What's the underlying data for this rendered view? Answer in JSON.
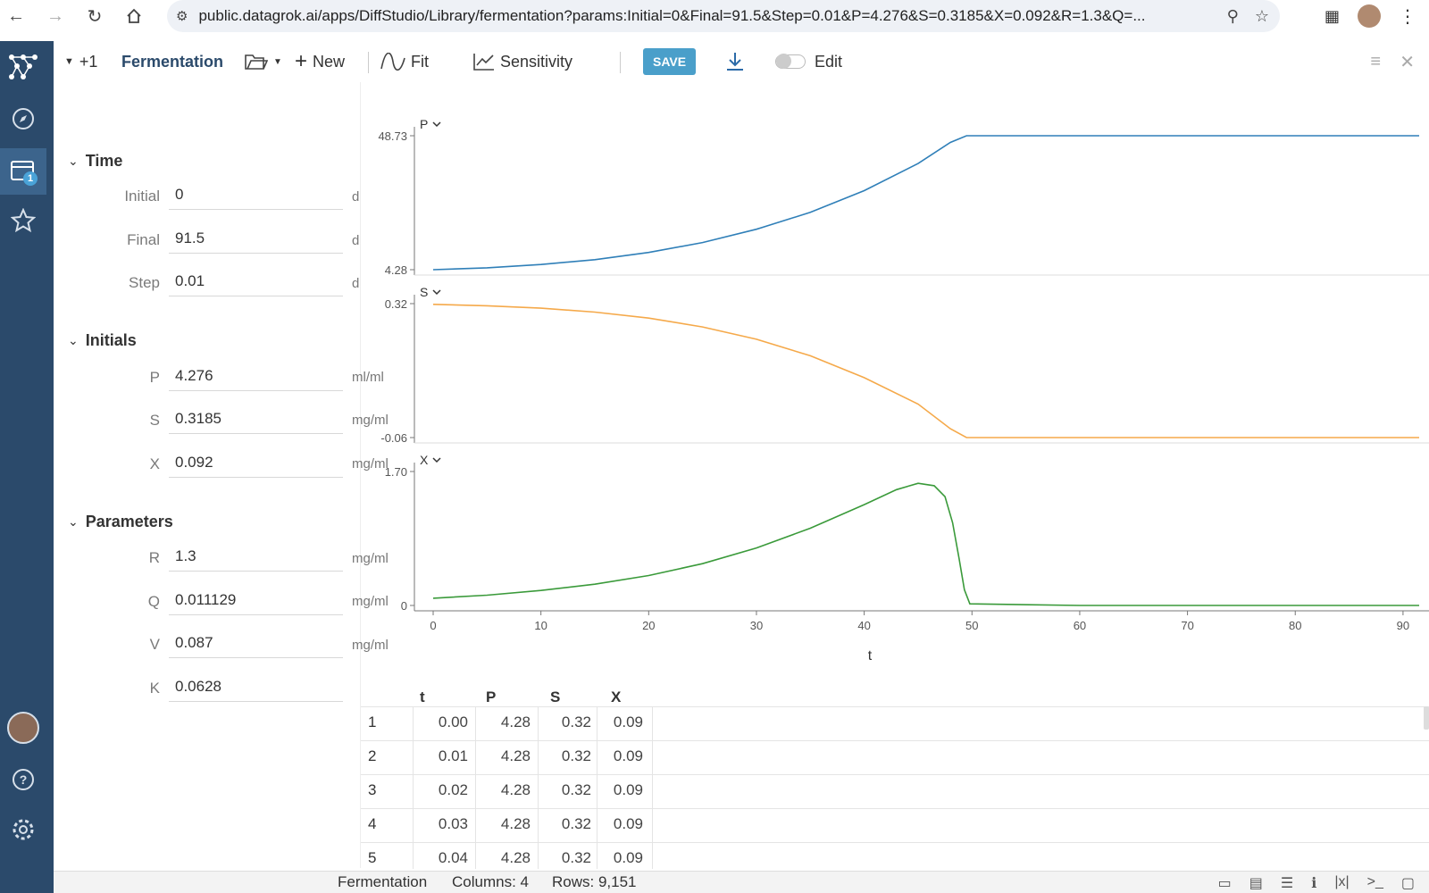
{
  "browser": {
    "url": "public.datagrok.ai/apps/DiffStudio/Library/fermentation?params:Initial=0&Final=91.5&Step=0.01&P=4.276&S=0.3185&X=0.092&R=1.3&Q=..."
  },
  "sidebar": {
    "badge": "1"
  },
  "toolbar": {
    "plus_count": "+1",
    "title": "Fermentation",
    "new_label": "New",
    "fit_label": "Fit",
    "sensitivity_label": "Sensitivity",
    "save_label": "SAVE",
    "edit_label": "Edit"
  },
  "panel": {
    "time": {
      "title": "Time",
      "fields": [
        {
          "label": "Initial",
          "value": "0",
          "unit": "d"
        },
        {
          "label": "Final",
          "value": "91.5",
          "unit": "d"
        },
        {
          "label": "Step",
          "value": "0.01",
          "unit": "d"
        }
      ]
    },
    "initials": {
      "title": "Initials",
      "fields": [
        {
          "label": "P",
          "value": "4.276",
          "unit": "ml/ml"
        },
        {
          "label": "S",
          "value": "0.3185",
          "unit": "mg/ml"
        },
        {
          "label": "X",
          "value": "0.092",
          "unit": "mg/ml"
        }
      ]
    },
    "parameters": {
      "title": "Parameters",
      "fields": [
        {
          "label": "R",
          "value": "1.3",
          "unit": "mg/ml"
        },
        {
          "label": "Q",
          "value": "0.011129",
          "unit": "mg/ml"
        },
        {
          "label": "V",
          "value": "0.087",
          "unit": "mg/ml"
        },
        {
          "label": "K",
          "value": "0.0628",
          "unit": ""
        }
      ]
    }
  },
  "chart_data": {
    "type": "line",
    "xlabel": "t",
    "xlim": [
      0,
      91.5
    ],
    "xticks": [
      "0",
      "10",
      "20",
      "30",
      "40",
      "50",
      "60",
      "70",
      "80",
      "90"
    ],
    "colors": {
      "P": "#2f7fb8",
      "S": "#f5a94a",
      "X": "#3a9a3a"
    },
    "series": [
      {
        "name": "P",
        "ymin_label": "4.28",
        "ymax_label": "48.73",
        "ylim": [
          4.28,
          48.73
        ],
        "x": [
          0,
          5,
          10,
          15,
          20,
          25,
          30,
          35,
          40,
          45,
          48,
          49.5,
          60,
          70,
          80,
          91.5
        ],
        "values": [
          4.28,
          4.9,
          6.0,
          7.6,
          10.0,
          13.3,
          17.7,
          23.3,
          30.5,
          39.5,
          46.5,
          48.73,
          48.73,
          48.73,
          48.73,
          48.73
        ]
      },
      {
        "name": "S",
        "ymin_label": "-0.06",
        "ymax_label": "0.32",
        "ylim": [
          -0.06,
          0.32
        ],
        "x": [
          0,
          5,
          10,
          15,
          20,
          25,
          30,
          35,
          40,
          45,
          48,
          49.5,
          60,
          70,
          80,
          91.5
        ],
        "values": [
          0.318,
          0.314,
          0.307,
          0.296,
          0.279,
          0.254,
          0.219,
          0.172,
          0.11,
          0.035,
          -0.035,
          -0.06,
          -0.06,
          -0.06,
          -0.06,
          -0.06
        ]
      },
      {
        "name": "X",
        "ymin_label": "0",
        "ymax_label": "1.70",
        "ylim": [
          0,
          1.7
        ],
        "x": [
          0,
          5,
          10,
          15,
          20,
          25,
          30,
          35,
          40,
          43,
          45,
          46.5,
          47.5,
          48.2,
          48.8,
          49.3,
          49.8,
          60,
          70,
          80,
          91.5
        ],
        "values": [
          0.092,
          0.13,
          0.19,
          0.27,
          0.38,
          0.53,
          0.73,
          0.98,
          1.28,
          1.47,
          1.55,
          1.52,
          1.38,
          1.05,
          0.6,
          0.2,
          0.02,
          0.0,
          0.0,
          0.0,
          0.0
        ]
      }
    ]
  },
  "grid": {
    "columns": [
      "t",
      "P",
      "S",
      "X"
    ],
    "rows": [
      [
        "1",
        "0.00",
        "4.28",
        "0.32",
        "0.09"
      ],
      [
        "2",
        "0.01",
        "4.28",
        "0.32",
        "0.09"
      ],
      [
        "3",
        "0.02",
        "4.28",
        "0.32",
        "0.09"
      ],
      [
        "4",
        "0.03",
        "4.28",
        "0.32",
        "0.09"
      ],
      [
        "5",
        "0.04",
        "4.28",
        "0.32",
        "0.09"
      ]
    ]
  },
  "status": {
    "name": "Fermentation",
    "columns": "Columns: 4",
    "rows": "Rows: 9,151"
  }
}
